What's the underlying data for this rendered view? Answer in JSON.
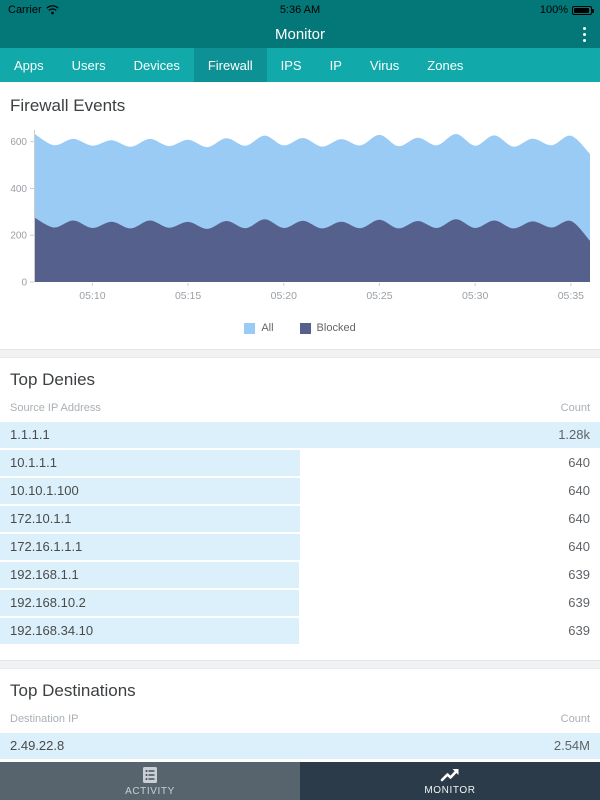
{
  "status_bar": {
    "carrier": "Carrier",
    "time": "5:36 AM",
    "battery_percent": "100%"
  },
  "nav": {
    "title": "Monitor",
    "overflow_menu": "overflow-menu"
  },
  "tab_bar": {
    "tabs": [
      "Apps",
      "Users",
      "Devices",
      "Firewall",
      "IPS",
      "IP",
      "Virus",
      "Zones"
    ],
    "active_tab": "Firewall"
  },
  "chart_data": {
    "type": "area",
    "mode": "overlay",
    "title": "Firewall Events",
    "x": [
      "05:07",
      "05:08",
      "05:09",
      "05:10",
      "05:11",
      "05:12",
      "05:13",
      "05:14",
      "05:15",
      "05:16",
      "05:17",
      "05:18",
      "05:19",
      "05:20",
      "05:21",
      "05:22",
      "05:23",
      "05:24",
      "05:25",
      "05:26",
      "05:27",
      "05:28",
      "05:29",
      "05:30",
      "05:31",
      "05:32",
      "05:33",
      "05:34",
      "05:35",
      "05:36"
    ],
    "x_tick_labels": [
      "05:10",
      "05:15",
      "05:20",
      "05:25",
      "05:30",
      "05:35"
    ],
    "yticks": [
      0,
      200,
      400,
      600
    ],
    "ylim": [
      0,
      650
    ],
    "grid": false,
    "legend_position": "bottom",
    "series": [
      {
        "name": "All",
        "color": "#9ACBF5",
        "values": [
          632,
          585,
          612,
          583,
          606,
          578,
          612,
          581,
          608,
          577,
          615,
          583,
          626,
          584,
          616,
          579,
          611,
          584,
          629,
          581,
          617,
          585,
          633,
          583,
          627,
          579,
          613,
          585,
          625,
          548
        ]
      },
      {
        "name": "Blocked",
        "color": "#55618C",
        "values": [
          274,
          233,
          263,
          231,
          258,
          229,
          263,
          232,
          257,
          227,
          261,
          230,
          268,
          231,
          262,
          229,
          258,
          230,
          266,
          229,
          261,
          231,
          268,
          231,
          263,
          229,
          259,
          233,
          261,
          176
        ]
      }
    ]
  },
  "top_denies": {
    "title": "Top Denies",
    "columns": {
      "left": "Source IP Address",
      "right": "Count"
    },
    "rows": [
      {
        "ip": "1.1.1.1",
        "count_label": "1.28k",
        "value": 1280
      },
      {
        "ip": "10.1.1.1",
        "count_label": "640",
        "value": 640
      },
      {
        "ip": "10.10.1.100",
        "count_label": "640",
        "value": 640
      },
      {
        "ip": "172.10.1.1",
        "count_label": "640",
        "value": 640
      },
      {
        "ip": "172.16.1.1.1",
        "count_label": "640",
        "value": 640
      },
      {
        "ip": "192.168.1.1",
        "count_label": "639",
        "value": 639
      },
      {
        "ip": "192.168.10.2",
        "count_label": "639",
        "value": 639
      },
      {
        "ip": "192.168.34.10",
        "count_label": "639",
        "value": 639
      }
    ],
    "bar_max": 1280
  },
  "top_destinations": {
    "title": "Top Destinations",
    "columns": {
      "left": "Destination IP",
      "right": "Count"
    },
    "rows": [
      {
        "ip": "2.49.22.8",
        "count_label": "2.54M",
        "value": 2540000
      }
    ],
    "bar_max": 2540000
  },
  "bottom_nav": {
    "items": [
      {
        "label": "ACTIVITY",
        "icon": "activity-list-icon",
        "active": false
      },
      {
        "label": "MONITOR",
        "icon": "monitor-trend-icon",
        "active": true
      }
    ]
  },
  "colors": {
    "status_nav_teal": "#047778",
    "tab_bar_teal": "#11A9A9",
    "active_tab_teal": "#0D9194",
    "series_all": "#9ACBF5",
    "series_blocked": "#55618C",
    "table_bar": "#DBF0FA",
    "bottom_inactive_bg": "#57646D",
    "bottom_active_bg": "#2B3B4A",
    "axis_text": "#9AA0A6"
  }
}
